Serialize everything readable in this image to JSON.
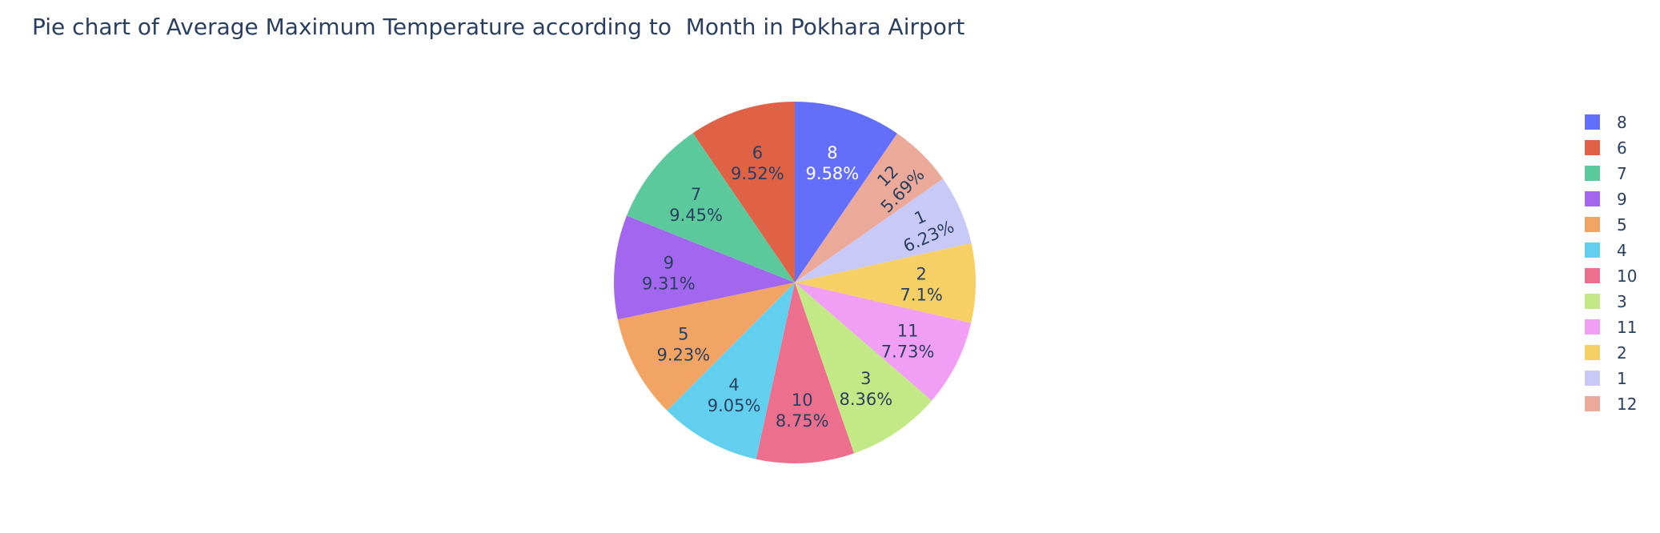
{
  "chart_data": {
    "type": "pie",
    "title": "Pie chart of Average Maximum Temperature according to  Month in Pokhara Airport",
    "slices": [
      {
        "label": "8",
        "percent": 9.58,
        "percent_label": "9.58%",
        "color": "#636efa",
        "text_color": "#ffffff"
      },
      {
        "label": "12",
        "percent": 5.69,
        "percent_label": "5.69%",
        "color": "#eaa999",
        "text_color": "#2a3f5f"
      },
      {
        "label": "1",
        "percent": 6.23,
        "percent_label": "6.23%",
        "color": "#c8c9f7",
        "text_color": "#2a3f5f"
      },
      {
        "label": "2",
        "percent": 7.1,
        "percent_label": "7.1%",
        "color": "#f6cf65",
        "text_color": "#2a3f5f"
      },
      {
        "label": "11",
        "percent": 7.73,
        "percent_label": "7.73%",
        "color": "#f19ef5",
        "text_color": "#2a3f5f"
      },
      {
        "label": "3",
        "percent": 8.36,
        "percent_label": "8.36%",
        "color": "#c3e886",
        "text_color": "#2a3f5f"
      },
      {
        "label": "10",
        "percent": 8.75,
        "percent_label": "8.75%",
        "color": "#ec6f8e",
        "text_color": "#2a3f5f"
      },
      {
        "label": "4",
        "percent": 9.05,
        "percent_label": "9.05%",
        "color": "#62cfef",
        "text_color": "#2a3f5f"
      },
      {
        "label": "5",
        "percent": 9.23,
        "percent_label": "9.23%",
        "color": "#f2a464",
        "text_color": "#2a3f5f"
      },
      {
        "label": "9",
        "percent": 9.31,
        "percent_label": "9.31%",
        "color": "#a367ef",
        "text_color": "#2a3f5f"
      },
      {
        "label": "7",
        "percent": 9.45,
        "percent_label": "9.45%",
        "color": "#5bc99b",
        "text_color": "#2a3f5f"
      },
      {
        "label": "6",
        "percent": 9.52,
        "percent_label": "9.52%",
        "color": "#df6247",
        "text_color": "#2a3f5f"
      }
    ],
    "legend_order": [
      "8",
      "6",
      "7",
      "9",
      "5",
      "4",
      "10",
      "3",
      "11",
      "2",
      "1",
      "12"
    ],
    "legend_placement": "right"
  }
}
